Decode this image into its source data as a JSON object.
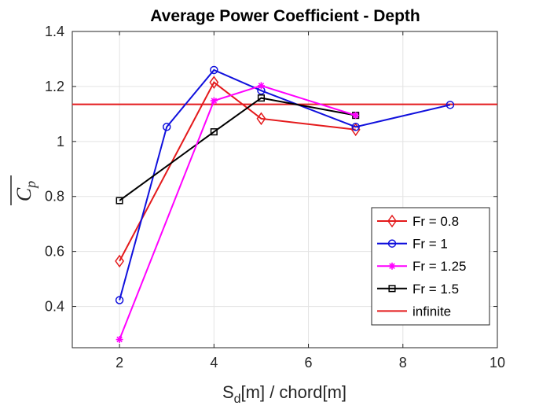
{
  "chart_data": {
    "type": "line",
    "title": "Average Power Coefficient - Depth",
    "xlabel": "S",
    "xlabel_sub": "d",
    "xlabel_rest": "[m] / chord[m]",
    "ylabel": "C",
    "ylabel_sub": "p",
    "xlim": [
      1,
      10
    ],
    "ylim": [
      0.25,
      1.4
    ],
    "xticks": [
      2,
      4,
      6,
      8,
      10
    ],
    "yticks": [
      0.4,
      0.6,
      0.8,
      1,
      1.2,
      1.4
    ],
    "ytick_labels": [
      "0.4",
      "0.6",
      "0.8",
      "1",
      "1.2",
      "1.4"
    ],
    "grid": true,
    "legend_position": "lower-right",
    "series": [
      {
        "name": "Fr = 0.8",
        "color": "#e41a1c",
        "marker": "diamond",
        "x": [
          2,
          4,
          5,
          7
        ],
        "y": [
          0.565,
          1.215,
          1.083,
          1.043
        ]
      },
      {
        "name": "Fr = 1",
        "color": "#1010dd",
        "marker": "circle",
        "x": [
          2,
          3,
          4,
          5,
          7,
          9
        ],
        "y": [
          0.423,
          1.053,
          1.26,
          1.185,
          1.053,
          1.133
        ]
      },
      {
        "name": "Fr = 1.25",
        "color": "#ff00ff",
        "marker": "star",
        "x": [
          2,
          4,
          5,
          7
        ],
        "y": [
          0.28,
          1.148,
          1.203,
          1.095
        ]
      },
      {
        "name": "Fr = 1.5",
        "color": "#000000",
        "marker": "square",
        "x": [
          2,
          4,
          5,
          7
        ],
        "y": [
          0.785,
          1.035,
          1.158,
          1.095
        ]
      }
    ],
    "reference_line": {
      "name": "infinite",
      "color": "#e41a1c",
      "y": 1.135
    }
  }
}
